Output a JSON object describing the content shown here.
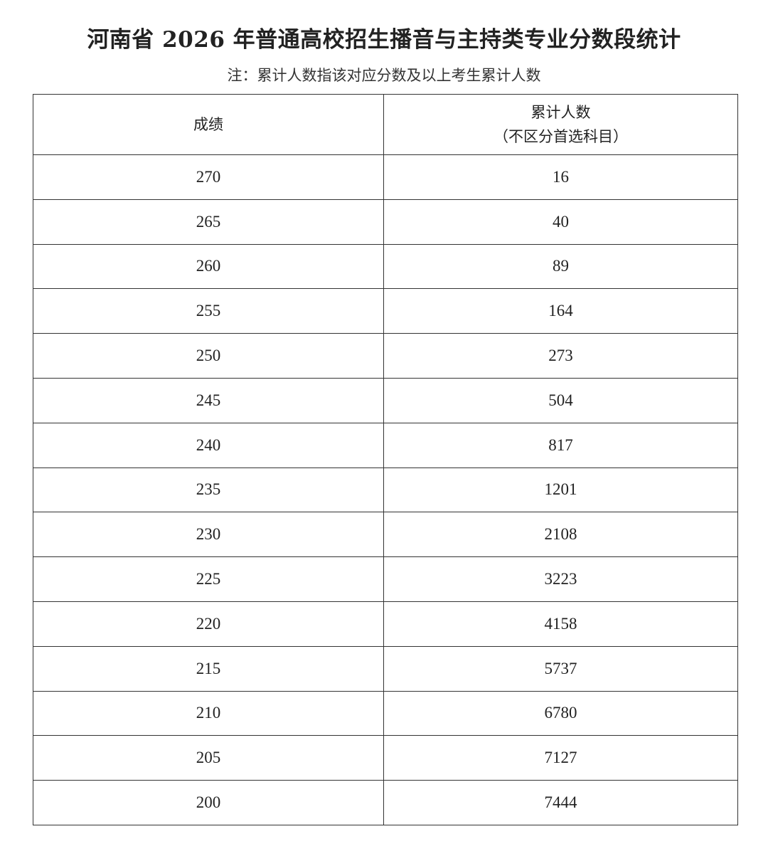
{
  "title": "河南省 2026 年普通高校招生播音与主持类专业分数段统计",
  "note": "注：累计人数指该对应分数及以上考生累计人数",
  "table": {
    "headers": {
      "score": "成绩",
      "cumulative_line1": "累计人数",
      "cumulative_line2": "（不区分首选科目）"
    },
    "rows": [
      {
        "score": "270",
        "count": "16"
      },
      {
        "score": "265",
        "count": "40"
      },
      {
        "score": "260",
        "count": "89"
      },
      {
        "score": "255",
        "count": "164"
      },
      {
        "score": "250",
        "count": "273"
      },
      {
        "score": "245",
        "count": "504"
      },
      {
        "score": "240",
        "count": "817"
      },
      {
        "score": "235",
        "count": "1201"
      },
      {
        "score": "230",
        "count": "2108"
      },
      {
        "score": "225",
        "count": "3223"
      },
      {
        "score": "220",
        "count": "4158"
      },
      {
        "score": "215",
        "count": "5737"
      },
      {
        "score": "210",
        "count": "6780"
      },
      {
        "score": "205",
        "count": "7127"
      },
      {
        "score": "200",
        "count": "7444"
      }
    ]
  }
}
